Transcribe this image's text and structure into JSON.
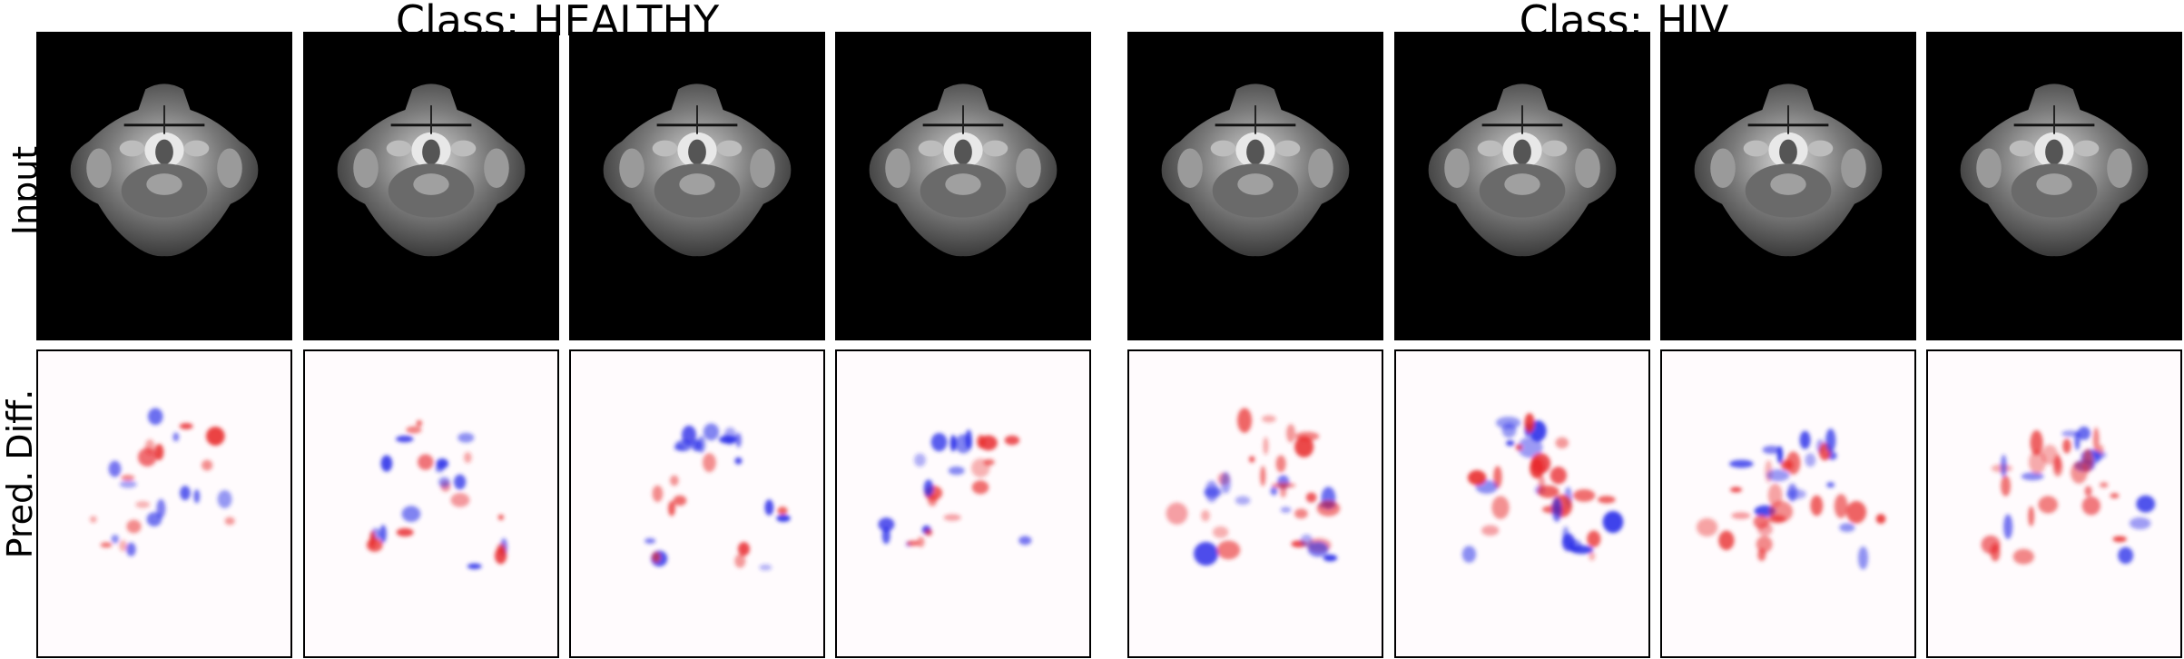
{
  "groups": [
    {
      "title": "Class: HEALTHY"
    },
    {
      "title": "Class: HIV"
    }
  ],
  "row_labels": [
    "Input",
    "Pred. Diff."
  ],
  "colors": {
    "input_background": "#000000",
    "diff_background": "#fffbfd",
    "positive_diff": "#e8282a",
    "negative_diff": "#2428e8"
  }
}
